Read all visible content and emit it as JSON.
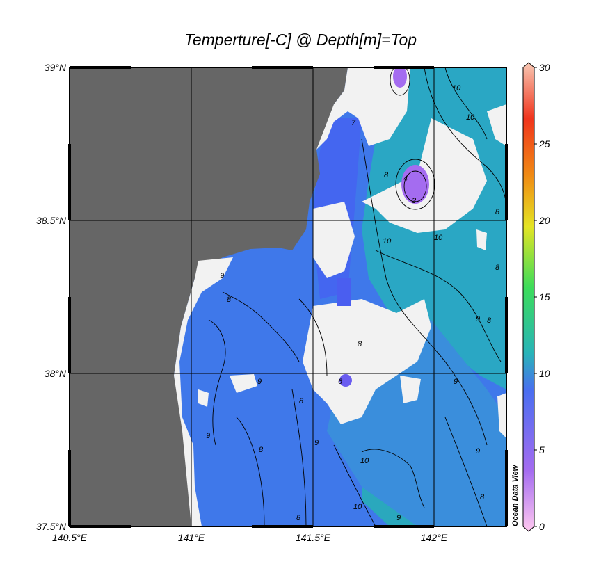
{
  "title": "Temperture[-C] @ Depth[m]=Top",
  "credit": "Ocean Data View",
  "map": {
    "lon_range": [
      140.5,
      142.3
    ],
    "lat_range": [
      37.5,
      39.0
    ],
    "lat_ticks": [
      "39°N",
      "38.5°N",
      "38°N",
      "37.5°N"
    ],
    "lon_ticks": [
      "140.5°E",
      "141°E",
      "141.5°E",
      "142°E"
    ],
    "grid": true
  },
  "colorbar": {
    "variable": "Temperture[-C]",
    "ticks": [
      "30",
      "25",
      "20",
      "15",
      "10",
      "5",
      "0"
    ],
    "range": [
      0,
      30
    ],
    "colors": [
      "#ffc8f0",
      "#a46cf0",
      "#4a6ef0",
      "#28b4b8",
      "#3cdc5a",
      "#e4e424",
      "#f08a14",
      "#f0341c",
      "#f8c8b4"
    ]
  },
  "contour_labels": [
    "10",
    "10",
    "10",
    "10",
    "8",
    "8",
    "8",
    "8",
    "9",
    "9",
    "9",
    "9",
    "9",
    "9",
    "9",
    "8",
    "8",
    "8",
    "8",
    "10",
    "10",
    "9",
    "8",
    "6",
    "7",
    "8",
    "4",
    "3"
  ],
  "colors": {
    "land": "#666666",
    "no_data": "#f2f2f2",
    "cold_water": "#4a6ef0",
    "mid_water": "#3a8cdc",
    "warm_water": "#28b4b8",
    "eddy": "#a46cf0"
  }
}
